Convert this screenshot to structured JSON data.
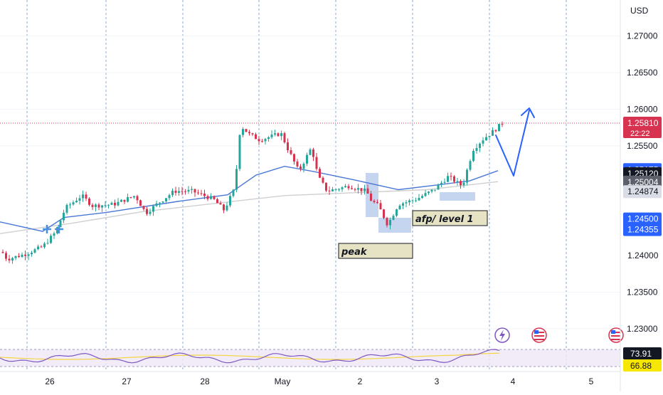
{
  "currency": "USD",
  "x_labels": [
    "26",
    "27",
    "28",
    "May",
    "2",
    "3",
    "4",
    "5"
  ],
  "y_ticks": [
    "1.27000",
    "1.26500",
    "1.26000",
    "1.25500",
    "1.23500",
    "1.23000"
  ],
  "price_tags": [
    {
      "value": "1.25810",
      "sub": "22:22",
      "bg": "#d7324f",
      "fg": "#ffffff"
    },
    {
      "value": "1.25175",
      "bg": "#2962ff",
      "fg": "#ffffff"
    },
    {
      "value": "1.25120",
      "bg": "#131722",
      "fg": "#ffffff"
    },
    {
      "value": "1.25004",
      "bg": "#5d606b",
      "fg": "#ffffff"
    },
    {
      "value": "1.24874",
      "bg": "#dadde6",
      "fg": "#131722"
    },
    {
      "value": "1.24500",
      "bg": "#2962ff",
      "fg": "#ffffff"
    },
    {
      "value": "1.24355",
      "bg": "#2962ff",
      "fg": "#ffffff"
    },
    {
      "value": "1.24000",
      "bg": "",
      "fg": "#131722"
    }
  ],
  "rsi_tags": [
    {
      "value": "73.91",
      "bg": "#131722",
      "fg": "#ffffff"
    },
    {
      "value": "66.88",
      "bg": "#f7e600",
      "fg": "#131722"
    }
  ],
  "annotations": [
    "afp/ level 1",
    "peak"
  ],
  "event_icons": [
    "lightning-icon",
    "us-flag-icon",
    "us-flag-icon"
  ],
  "colors": {
    "bull": "#26a69a",
    "bear": "#d7324f",
    "ma_fast": "#4a78d6",
    "ma_slow": "#c8c8c8",
    "arrow": "#2962ff",
    "rsi": "#7e57c2",
    "rsi_ma": "#f5d442"
  },
  "chart_data": {
    "type": "candlestick",
    "symbol_quote": "USD",
    "x_axis_labels": [
      "26",
      "27",
      "28",
      "May",
      "2",
      "3",
      "4",
      "5"
    ],
    "ylim": [
      1.229,
      1.2725
    ],
    "last_price": 1.2581,
    "countdown": "22:22",
    "moving_averages": [
      {
        "label": "1.25175",
        "value_end": 1.25175
      },
      {
        "label": "1.25004",
        "value_end": 1.25004
      }
    ],
    "close_path": [
      [
        "26",
        1.2395
      ],
      [
        "26",
        1.2412
      ],
      [
        "26",
        1.2431
      ],
      [
        "27",
        1.2465
      ],
      [
        "27",
        1.2485
      ],
      [
        "27",
        1.2465
      ],
      [
        "28",
        1.2492
      ],
      [
        "28",
        1.247
      ],
      [
        "28",
        1.2578
      ],
      [
        "May",
        1.256
      ],
      [
        "May",
        1.2525
      ],
      [
        "May",
        1.2485
      ],
      [
        "2",
        1.249
      ],
      [
        "2",
        1.244
      ],
      [
        "2",
        1.2475
      ],
      [
        "3",
        1.251
      ],
      [
        "3",
        1.2555
      ],
      [
        "3",
        1.2581
      ]
    ],
    "rsi": {
      "value": 73.91,
      "ma": 66.88
    }
  }
}
